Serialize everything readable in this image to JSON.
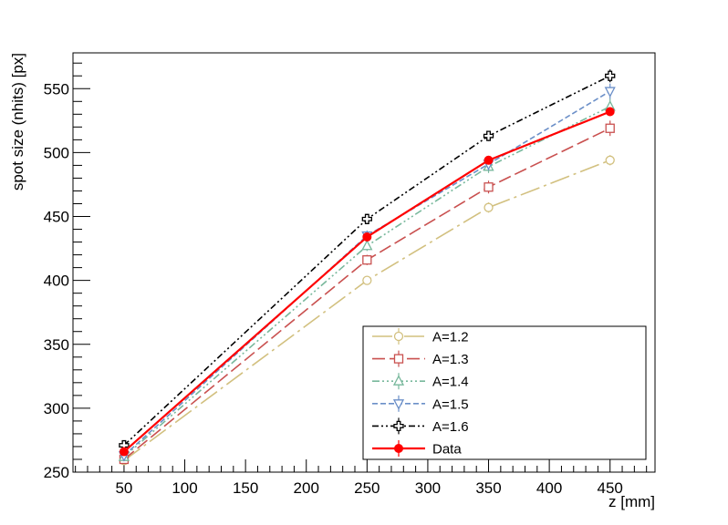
{
  "chart_data": {
    "type": "line",
    "title": "",
    "xlabel": "z [mm]",
    "ylabel": "spot size (nhits) [px]",
    "xlim": [
      8,
      487
    ],
    "ylim": [
      250,
      578
    ],
    "x_ticks": [
      50,
      100,
      150,
      200,
      250,
      300,
      350,
      400,
      450
    ],
    "y_ticks": [
      250,
      300,
      350,
      400,
      450,
      500,
      550
    ],
    "x": [
      50,
      250,
      350,
      450
    ],
    "grid": false,
    "legend_position": "bottom-right",
    "series": [
      {
        "name": "A=1.2",
        "values": [
          259,
          400,
          457,
          494
        ],
        "errors": [
          3,
          3,
          4,
          4
        ],
        "color": "#d2c07f",
        "marker": "circle-open",
        "dash": "22,5,3,5"
      },
      {
        "name": "A=1.3",
        "values": [
          260,
          416,
          473,
          519
        ],
        "errors": [
          3,
          4,
          5,
          6
        ],
        "color": "#c9504f",
        "marker": "square-open",
        "dash": "14,5"
      },
      {
        "name": "A=1.4",
        "values": [
          262,
          427,
          489,
          536
        ],
        "errors": [
          3,
          4,
          5,
          6
        ],
        "color": "#78b89c",
        "marker": "triangle-up-open",
        "dash": "8,3,2,3,2,3,2,3"
      },
      {
        "name": "A=1.5",
        "values": [
          263,
          435,
          491,
          548
        ],
        "errors": [
          3,
          4,
          5,
          6
        ],
        "color": "#6b8fc8",
        "marker": "triangle-down-open",
        "dash": "6,3"
      },
      {
        "name": "A=1.6",
        "values": [
          271,
          448,
          513,
          560
        ],
        "errors": [
          3,
          4,
          4,
          5
        ],
        "color": "#000000",
        "marker": "cross-open",
        "dash": "7,3,2,3,2,3"
      },
      {
        "name": "Data",
        "values": [
          266,
          434,
          494,
          532
        ],
        "errors": [
          2,
          3,
          3,
          3
        ],
        "color": "#ff0000",
        "marker": "circle-filled",
        "dash": ""
      }
    ]
  }
}
